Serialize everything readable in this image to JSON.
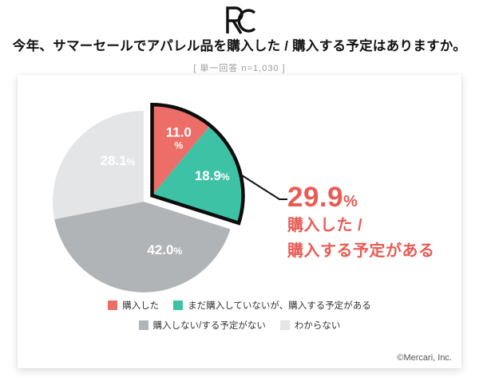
{
  "header": {
    "logo": "RC"
  },
  "chart_data": {
    "type": "pie",
    "title": "今年、サマーセールでアパレル品を購入した / 購入する予定はありますか。",
    "subtitle": "[ 単一回答 n=1,030 ]",
    "direction": "clockwise",
    "start_angle_deg": 0,
    "legend_position": "bottom",
    "outline_color": "#0d0d0d",
    "slices": [
      {
        "label": "購入した",
        "value": 11.0,
        "display": "11.0%",
        "color": "#ed6e68",
        "label_color": "#ffffff",
        "exploded": true,
        "two_line": true
      },
      {
        "label": "まだ購入していないが、購入する予定がある",
        "value": 18.9,
        "display": "18.9%",
        "color": "#3ec2a5",
        "label_color": "#ffffff",
        "exploded": true,
        "two_line": false
      },
      {
        "label": "購入しない/する予定がない",
        "value": 42.0,
        "display": "42.0%",
        "color": "#b1b4b6",
        "label_color": "#ffffff",
        "exploded": false,
        "two_line": false
      },
      {
        "label": "わからない",
        "value": 28.1,
        "display": "28.1%",
        "color": "#e4e5e6",
        "label_color": "#ffffff",
        "exploded": false,
        "two_line": false
      }
    ],
    "annotation": {
      "value": "29.9",
      "unit": "%",
      "line1": "購入した /",
      "line2": "購入する予定がある",
      "color": "#e85c55"
    }
  },
  "footer": {
    "copyright": "©Mercari, Inc."
  }
}
